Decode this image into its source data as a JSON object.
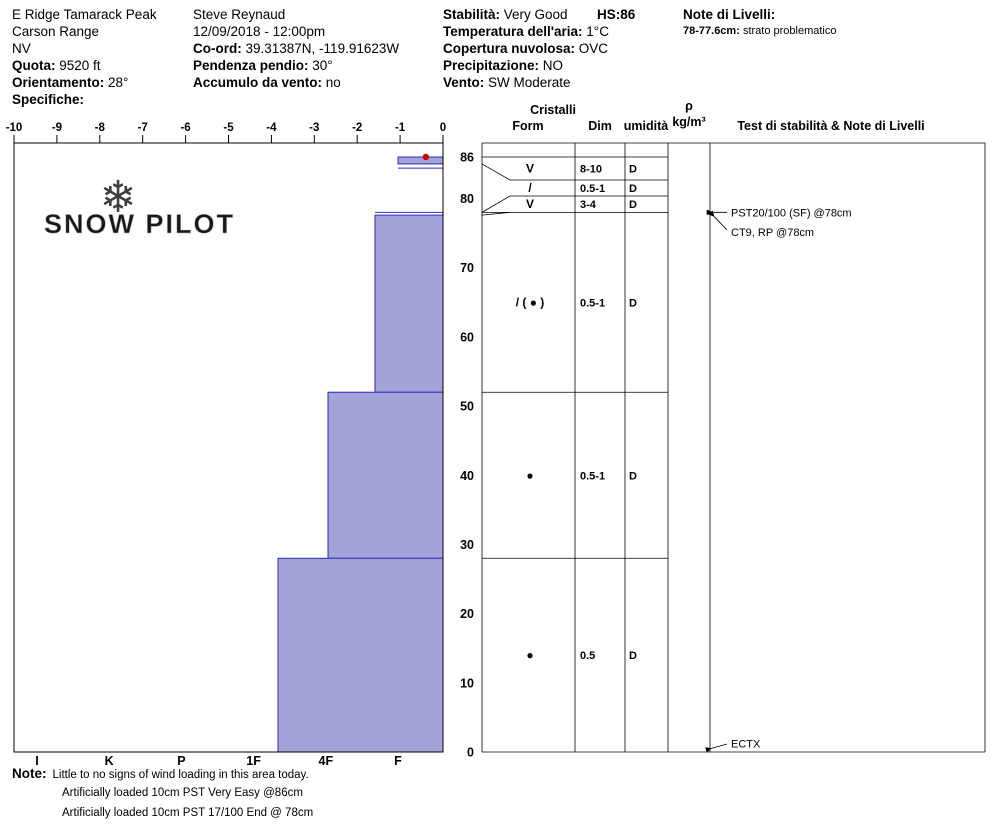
{
  "header": {
    "site": {
      "name": "E Ridge Tamarack Peak",
      "range": "Carson Range",
      "state": "NV",
      "elevation_label": "Quota:",
      "elevation": "9520 ft",
      "aspect_label": "Orientamento:",
      "aspect": "28°",
      "specifics_label": "Specifiche:"
    },
    "observer": {
      "name": "Steve Reynaud",
      "datetime": "12/09/2018 - 12:00pm",
      "coord_label": "Co-ord:",
      "coord": "39.31387N, -119.91623W",
      "slope_label": "Pendenza pendio:",
      "slope": "30°",
      "wind_loading_label": "Accumulo da vento:",
      "wind_loading": "no"
    },
    "conditions": {
      "stability_label": "Stabilità:",
      "stability": "Very Good",
      "hs_label": "HS:",
      "hs": "86",
      "air_temp_label": "Temperatura dell'aria:",
      "air_temp": "1°C",
      "sky_label": "Copertura nuvolosa:",
      "sky": "OVC",
      "precip_label": "Precipitazione:",
      "precip": "NO",
      "wind_label": "Vento:",
      "wind": "SW Moderate"
    },
    "layer_notes": {
      "title": "Note di Livelli:",
      "depth": "78-77.6cm:",
      "text": "strato problematico"
    }
  },
  "colors": {
    "bar_fill": "#a3a3d7",
    "bar_stroke": "#2b2bbe",
    "temp_point": "#cc0000",
    "watermark_flake": "#b9c9da",
    "watermark_text": "#dcdcdc"
  },
  "chart_data": {
    "type": "snow-profile",
    "watermark": "SNOW PILOT",
    "hs_cm": 86,
    "temp_axis_c": [
      -10,
      -9,
      -8,
      -7,
      -6,
      -5,
      -4,
      -3,
      -2,
      -1,
      0
    ],
    "depth_axis_cm": [
      86,
      80,
      70,
      60,
      50,
      40,
      30,
      20,
      10,
      0
    ],
    "hardness_axis": [
      "I",
      "K",
      "P",
      "1F",
      "4F",
      "F"
    ],
    "surface_temp_point": {
      "depth_cm": 86,
      "temp_c": -0.4
    },
    "layers": [
      {
        "top_cm": 86,
        "bottom_cm": 85,
        "form": "V",
        "size_mm": "8-10",
        "wetness": "D",
        "hardness": "F"
      },
      {
        "top_cm": 85,
        "bottom_cm": 78,
        "form": "/",
        "size_mm": "0.5-1",
        "wetness": "D",
        "hardness": null
      },
      {
        "top_cm": 78,
        "bottom_cm": 77.6,
        "form": "V",
        "size_mm": "3-4",
        "wetness": "D",
        "hardness": null
      },
      {
        "top_cm": 77.6,
        "bottom_cm": 52,
        "form": "/ ( ● )",
        "size_mm": "0.5-1",
        "wetness": "D",
        "hardness": "F+"
      },
      {
        "top_cm": 52,
        "bottom_cm": 28,
        "form": "●",
        "size_mm": "0.5-1",
        "wetness": "D",
        "hardness": "4F"
      },
      {
        "top_cm": 28,
        "bottom_cm": 0,
        "form": "●",
        "size_mm": "0.5",
        "wetness": "D",
        "hardness": "1F-"
      }
    ],
    "table_headers": {
      "crystals": "Cristalli",
      "form": "Form",
      "dim": "Dim",
      "humidity": "umidità",
      "density_symbol": "ρ",
      "density_unit": "kg/m³",
      "tests": "Test di stabilità & Note di Livelli"
    },
    "stability_tests": [
      {
        "label": "PST20/100 (SF) @78cm",
        "depth_cm": 78
      },
      {
        "label": "CT9, RP @78cm",
        "depth_cm": 78
      },
      {
        "label": "ECTX",
        "depth_cm": 0
      }
    ]
  },
  "footer": {
    "note_label": "Note:",
    "note_text": "Little to no signs of wind loading in this area today.",
    "extra_notes": [
      "Artificially loaded 10cm PST Very Easy @86cm",
      "Artificially loaded 10cm PST 17/100 End @ 78cm"
    ]
  }
}
